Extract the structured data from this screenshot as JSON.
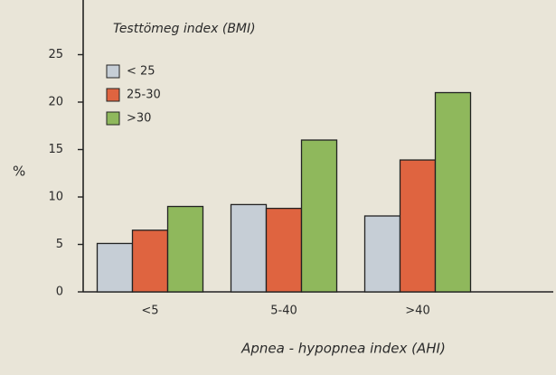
{
  "chart_data": {
    "type": "bar",
    "legend_title": "Testtömeg index (BMI)",
    "y_label": "%",
    "x_label": "Apnea - hypopnea index (AHI)",
    "categories": [
      "<5",
      "5-40",
      ">40"
    ],
    "series": [
      {
        "name": "< 25",
        "color": "#c6ced6",
        "values": [
          5.1,
          9.2,
          8.0
        ]
      },
      {
        "name": "25-30",
        "color": "#df6440",
        "values": [
          6.5,
          8.8,
          13.9
        ]
      },
      {
        "name": ">30",
        "color": "#8fb85c",
        "values": [
          9.0,
          16.0,
          21.0
        ]
      }
    ],
    "ylim": [
      0,
      30
    ],
    "yticks": [
      0,
      5,
      10,
      15,
      20,
      25
    ],
    "grid": false,
    "legend": "top-left"
  }
}
